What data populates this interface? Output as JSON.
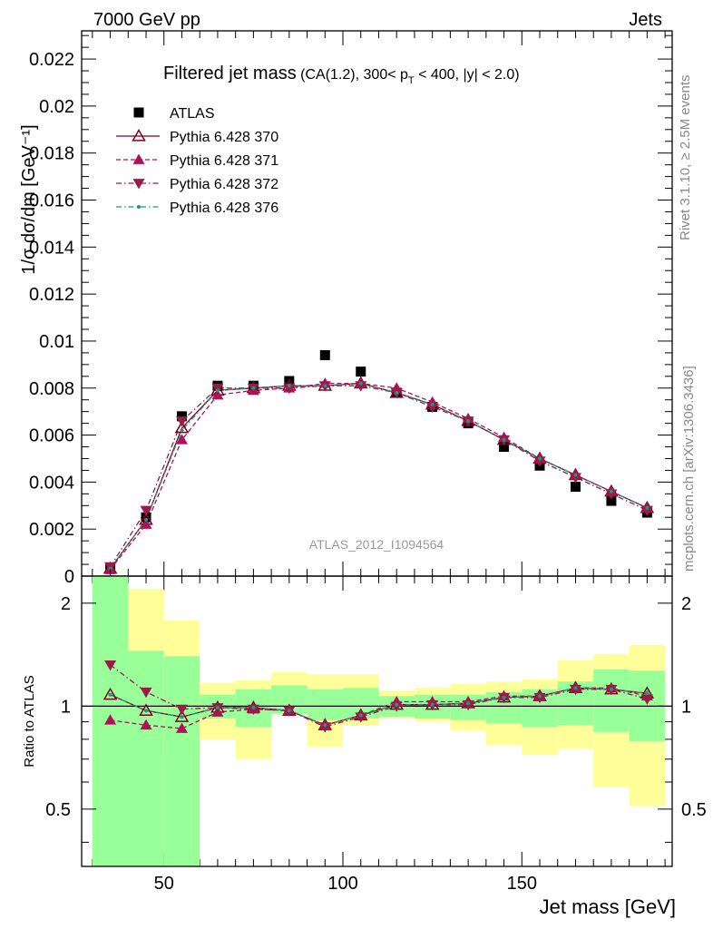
{
  "header": {
    "left": "7000 GeV pp",
    "right": "Jets"
  },
  "side_labels": {
    "rivet": "Rivet 3.1.10, ≥ 2.5M events",
    "mcplots": "mcplots.cern.ch [arXiv:1306.3436]"
  },
  "chart_data": [
    {
      "type": "scatter",
      "title": "Filtered jet mass",
      "subtitle": "(CA(1.2), 300< p_T < 400, |y| < 2.0)",
      "ylabel": "1/σ dσ/dm [GeV⁻¹]",
      "xlabel": "",
      "watermark": "ATLAS_2012_I1094564",
      "xlim": [
        27,
        192
      ],
      "ylim": [
        0,
        0.0232
      ],
      "x": [
        35,
        45,
        55,
        65,
        75,
        85,
        95,
        105,
        115,
        125,
        135,
        145,
        155,
        165,
        175,
        185
      ],
      "y_ticks": [
        "0",
        "0.002",
        "0.004",
        "0.006",
        "0.008",
        "0.01",
        "0.012",
        "0.014",
        "0.016",
        "0.018",
        "0.02",
        "0.022"
      ],
      "legend_position": "top-left",
      "series": [
        {
          "name": "ATLAS",
          "color": "#000000",
          "marker": "square",
          "line": "none",
          "values": [
            0.0003,
            0.0025,
            0.0068,
            0.0081,
            0.0081,
            0.0083,
            0.0094,
            0.0087,
            0.0078,
            0.0072,
            0.0065,
            0.0055,
            0.0047,
            0.0038,
            0.0032,
            0.0027
          ]
        },
        {
          "name": "Pythia 6.428 370",
          "color": "#800020",
          "marker": "open-triangle-up",
          "line": "solid",
          "values": [
            0.00032,
            0.0024,
            0.0063,
            0.0079,
            0.008,
            0.0081,
            0.0081,
            0.0082,
            0.0078,
            0.0073,
            0.0066,
            0.0058,
            0.005,
            0.0043,
            0.0036,
            0.0029
          ]
        },
        {
          "name": "Pythia 6.428 371",
          "color": "#b0105a",
          "marker": "triangle-up",
          "line": "dashed",
          "values": [
            0.00028,
            0.0022,
            0.0058,
            0.0077,
            0.0079,
            0.008,
            0.0082,
            0.0082,
            0.008,
            0.0074,
            0.0067,
            0.0059,
            0.005,
            0.0043,
            0.0036,
            0.0029
          ]
        },
        {
          "name": "Pythia 6.428 372",
          "color": "#9a1a4a",
          "marker": "triangle-down",
          "line": "dashdot",
          "values": [
            0.0004,
            0.0028,
            0.0066,
            0.008,
            0.008,
            0.008,
            0.0081,
            0.0081,
            0.0078,
            0.0072,
            0.0066,
            0.0058,
            0.0049,
            0.0042,
            0.0035,
            0.0028
          ]
        },
        {
          "name": "Pythia 6.428 376",
          "color": "#1a9a7a",
          "marker": "dot",
          "line": "dashdot",
          "values": [
            0.00032,
            0.0024,
            0.0062,
            0.0079,
            0.008,
            0.0081,
            0.0081,
            0.0082,
            0.0078,
            0.0073,
            0.0066,
            0.0058,
            0.005,
            0.0043,
            0.0036,
            0.0029
          ]
        }
      ]
    },
    {
      "type": "line",
      "title": "",
      "ylabel": "Ratio to ATLAS",
      "xlabel": "Jet mass [GeV]",
      "xlim": [
        27,
        192
      ],
      "ylim": [
        0.34,
        2.4
      ],
      "log_y": true,
      "x_ticks": [
        50,
        100,
        150
      ],
      "y_ticks": [
        "0.5",
        "1",
        "2"
      ],
      "bands": {
        "bin_edges": [
          30,
          40,
          50,
          60,
          70,
          80,
          90,
          100,
          110,
          120,
          130,
          140,
          150,
          160,
          170,
          180,
          190
        ],
        "green_low": [
          0.34,
          0.34,
          0.34,
          0.92,
          0.87,
          0.95,
          0.91,
          0.92,
          0.93,
          0.92,
          0.91,
          0.89,
          0.87,
          0.88,
          0.84,
          0.79
        ],
        "green_high": [
          2.4,
          1.45,
          1.4,
          1.08,
          1.12,
          1.15,
          1.12,
          1.13,
          1.07,
          1.08,
          1.08,
          1.1,
          1.12,
          1.18,
          1.28,
          1.27
        ],
        "yellow_low": [
          0.34,
          0.34,
          0.72,
          0.8,
          0.7,
          0.95,
          0.76,
          0.88,
          0.92,
          0.9,
          0.85,
          0.77,
          0.72,
          0.75,
          0.58,
          0.51
        ],
        "yellow_high": [
          2.4,
          2.2,
          1.78,
          1.17,
          1.19,
          1.26,
          1.24,
          1.24,
          1.11,
          1.13,
          1.16,
          1.18,
          1.2,
          1.36,
          1.42,
          1.51
        ],
        "green_color": "#99ff99",
        "yellow_color": "#ffff99"
      },
      "reference_line": 1,
      "series": [
        {
          "name": "Pythia 6.428 370",
          "color": "#800020",
          "marker": "open-triangle-up",
          "line": "solid",
          "values": [
            1.08,
            0.97,
            0.93,
            0.99,
            0.99,
            0.97,
            0.88,
            0.94,
            1.01,
            1.01,
            1.02,
            1.06,
            1.07,
            1.13,
            1.12,
            1.09
          ]
        },
        {
          "name": "Pythia 6.428 371",
          "color": "#b0105a",
          "marker": "triangle-up",
          "line": "dashed",
          "values": [
            0.91,
            0.88,
            0.86,
            0.96,
            0.98,
            0.97,
            0.88,
            0.94,
            1.03,
            1.03,
            1.03,
            1.07,
            1.07,
            1.13,
            1.13,
            1.07
          ]
        },
        {
          "name": "Pythia 6.428 372",
          "color": "#9a1a4a",
          "marker": "triangle-down",
          "line": "dashdot",
          "values": [
            1.32,
            1.1,
            0.98,
            0.99,
            0.98,
            0.97,
            0.87,
            0.93,
            1.0,
            1.01,
            1.01,
            1.06,
            1.06,
            1.12,
            1.12,
            1.05
          ]
        },
        {
          "name": "Pythia 6.428 376",
          "color": "#1a9a7a",
          "marker": "dot",
          "line": "dashdot",
          "values": [
            1.08,
            0.97,
            0.93,
            0.99,
            0.99,
            0.97,
            0.88,
            0.94,
            1.01,
            1.01,
            1.02,
            1.06,
            1.07,
            1.13,
            1.12,
            1.09
          ]
        }
      ]
    }
  ]
}
